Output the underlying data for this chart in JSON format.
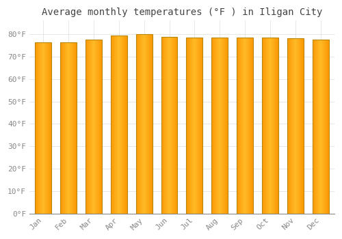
{
  "title": "Average monthly temperatures (°F ) in Iligan City",
  "months": [
    "Jan",
    "Feb",
    "Mar",
    "Apr",
    "May",
    "Jun",
    "Jul",
    "Aug",
    "Sep",
    "Oct",
    "Nov",
    "Dec"
  ],
  "values": [
    76.5,
    76.5,
    77.5,
    79.5,
    80.0,
    78.8,
    78.5,
    78.5,
    78.5,
    78.5,
    78.3,
    77.5
  ],
  "bar_color": "#FFA500",
  "bar_edge_color": "#B8860B",
  "background_color": "#FFFFFF",
  "plot_bg_color": "#FFFFFF",
  "grid_color": "#DDDDDD",
  "ylim": [
    0,
    86
  ],
  "ytick_values": [
    0,
    10,
    20,
    30,
    40,
    50,
    60,
    70,
    80
  ],
  "title_fontsize": 10,
  "tick_fontsize": 8,
  "tick_color": "#888888",
  "font_family": "monospace",
  "bar_width": 0.65
}
